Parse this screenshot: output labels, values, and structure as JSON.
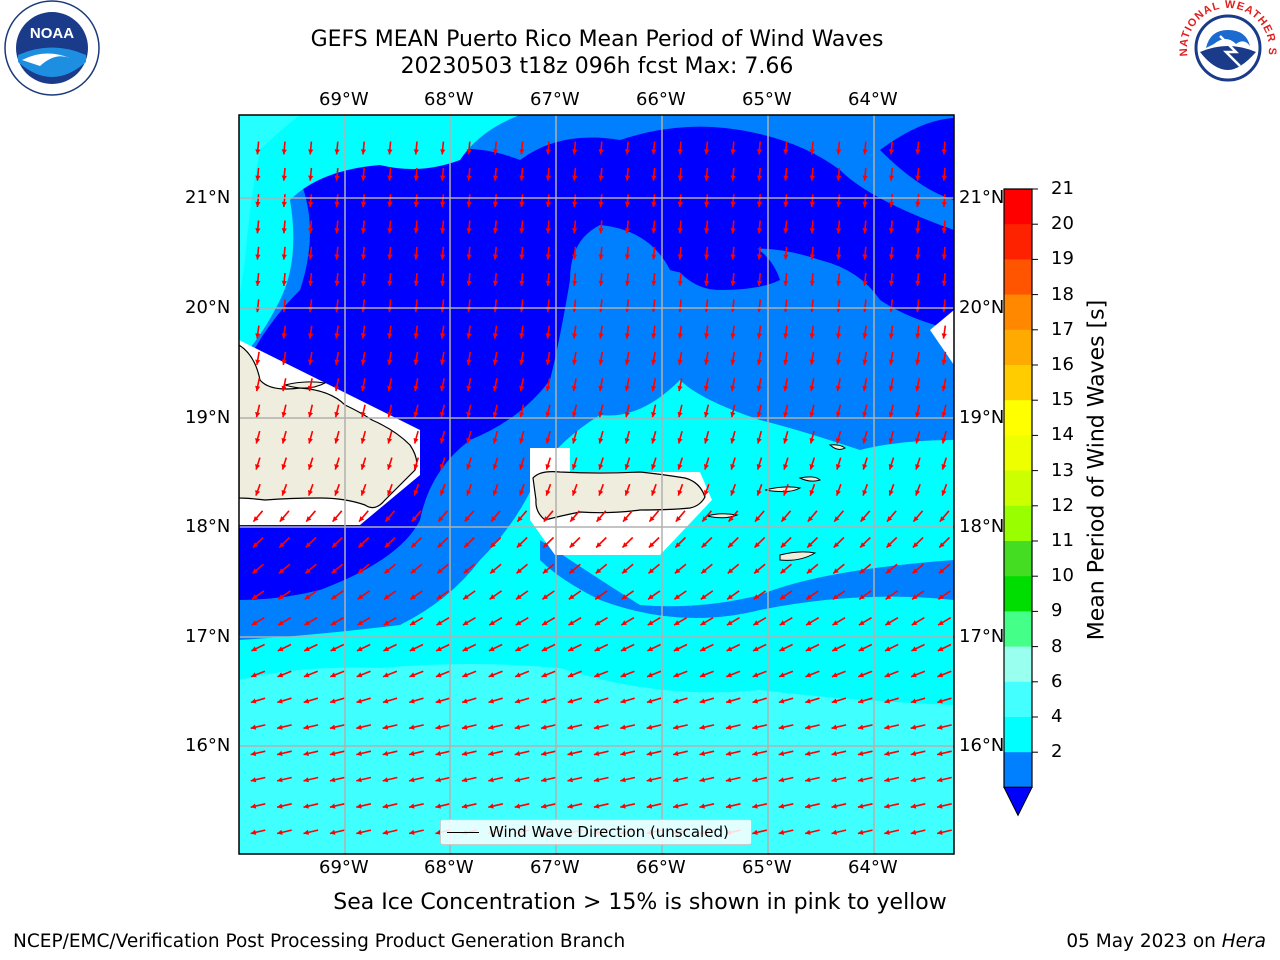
{
  "header": {
    "title_line1": "GEFS MEAN Puerto Rico Mean Period of Wind Waves",
    "title_line2": "20230503 t18z 096h fcst   Max: 7.66"
  },
  "logos": {
    "left": {
      "name": "noaa-logo",
      "text": "NOAA"
    },
    "right": {
      "name": "national-weather-service-logo",
      "text": "NATIONAL WEATHER SERVICE"
    }
  },
  "map": {
    "lon_labels": [
      "69°W",
      "68°W",
      "67°W",
      "66°W",
      "65°W",
      "64°W"
    ],
    "lat_labels": [
      "21°N",
      "20°N",
      "19°N",
      "18°N",
      "17°N",
      "16°N"
    ],
    "lon_values": [
      -69,
      -68,
      -67,
      -66,
      -65,
      -64
    ],
    "lat_values": [
      21,
      20,
      19,
      18,
      17,
      16
    ],
    "extent": {
      "lon_min": -70.0,
      "lon_max": -63.25,
      "lat_min": 15.05,
      "lat_max": 21.75
    },
    "legend_label": "Wind Wave Direction (unscaled)",
    "arrow_color": "#ff0000",
    "land_color": "#efedde"
  },
  "colorbar": {
    "label": "Mean Period of Wind Waves [s]",
    "ticks": [
      "21",
      "20",
      "19",
      "18",
      "17",
      "16",
      "15",
      "14",
      "13",
      "12",
      "11",
      "10",
      "9",
      "8",
      "6",
      "4",
      "2"
    ],
    "colors": [
      "#ff0000",
      "#ff2200",
      "#ff5500",
      "#ff8800",
      "#ffaa00",
      "#ffcc00",
      "#ffff00",
      "#eeff00",
      "#ccff00",
      "#99ff00",
      "#44dd22",
      "#00dd00",
      "#44ff88",
      "#99ffee",
      "#44ffff",
      "#00ffff",
      "#0080ff"
    ],
    "extend_color": "#0000ff"
  },
  "notes": {
    "sea_ice": "Sea Ice Concentration > 15% is shown in pink to yellow"
  },
  "footer": {
    "left": "NCEP/EMC/Verification Post Processing Product Generation Branch",
    "date": "05 May 2023 on ",
    "machine": "Hera"
  }
}
